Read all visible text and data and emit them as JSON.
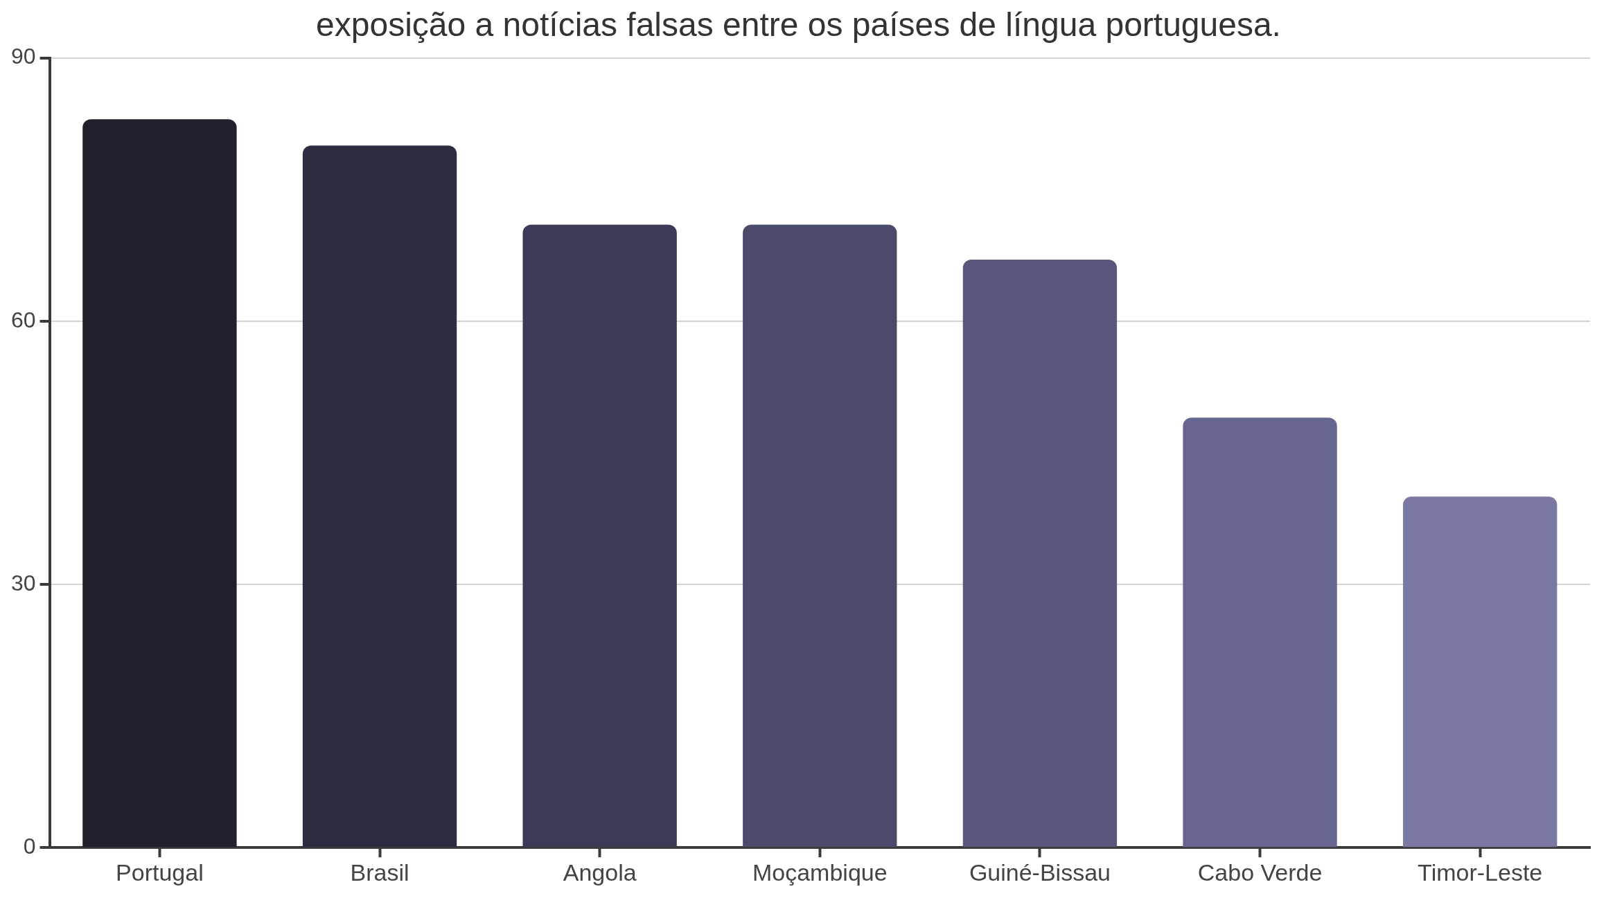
{
  "chart_data": {
    "type": "bar",
    "title": "exposição a notícias falsas entre os países de língua portuguesa.",
    "categories": [
      "Portugal",
      "Brasil",
      "Angola",
      "Moçambique",
      "Guiné-Bissau",
      "Cabo Verde",
      "Timor-Leste"
    ],
    "values": [
      83,
      80,
      71,
      71,
      67,
      49,
      40
    ],
    "colors": [
      "#21202d",
      "#2d2d42",
      "#3c3b57",
      "#4a4a6a",
      "#58587e",
      "#666690",
      "#7a79a3"
    ],
    "ylim": [
      0,
      90
    ],
    "yticks": [
      0,
      30,
      60,
      90
    ],
    "grid": "y",
    "legend": false
  }
}
